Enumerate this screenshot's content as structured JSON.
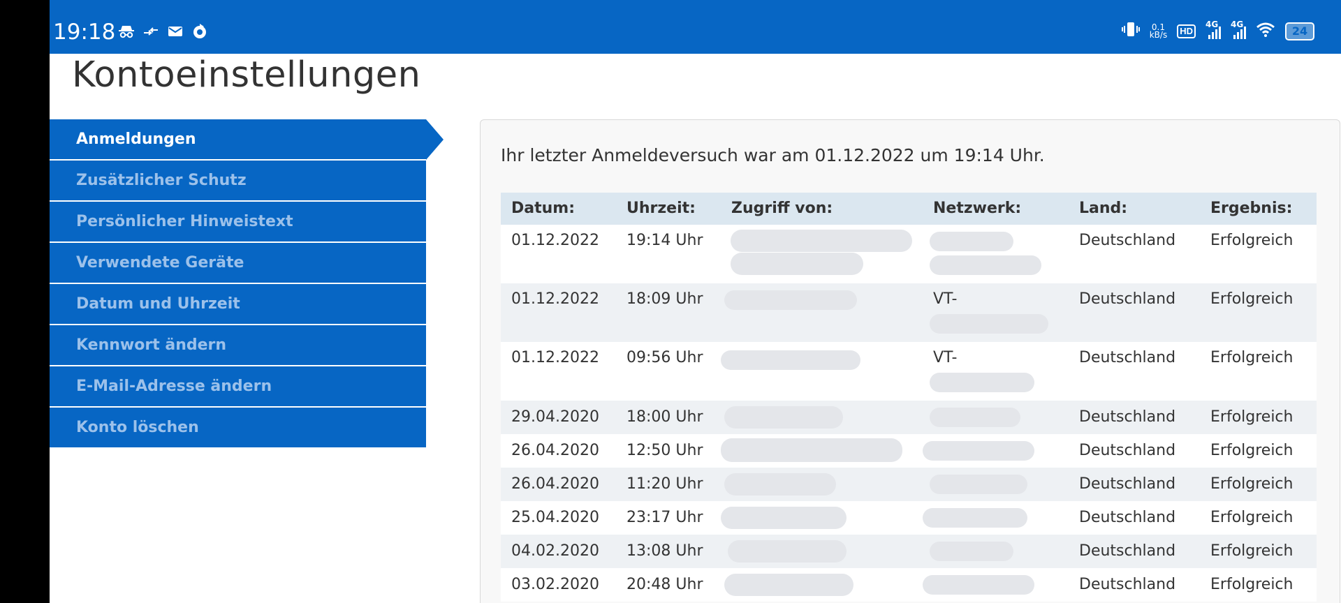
{
  "status_bar": {
    "time": "19:18",
    "left_icons": [
      "incognito-icon",
      "data-transfer-icon",
      "mail-icon",
      "sync-icon"
    ],
    "speed_value": "0.1",
    "speed_unit": "kB/s",
    "hd_label": "HD",
    "signal_label_1": "4G",
    "signal_label_2": "4G",
    "battery": "24"
  },
  "page": {
    "title": "Kontoeinstellungen"
  },
  "sidebar": {
    "items": [
      {
        "label": "Anmeldungen",
        "active": true
      },
      {
        "label": "Zusätzlicher Schutz",
        "active": false
      },
      {
        "label": "Persönlicher Hinweistext",
        "active": false
      },
      {
        "label": "Verwendete Geräte",
        "active": false
      },
      {
        "label": "Datum und Uhrzeit",
        "active": false
      },
      {
        "label": "Kennwort ändern",
        "active": false
      },
      {
        "label": "E-Mail-Adresse ändern",
        "active": false
      },
      {
        "label": "Konto löschen",
        "active": false
      }
    ]
  },
  "main": {
    "last_attempt": "Ihr letzter Anmeldeversuch war am 01.12.2022 um 19:14 Uhr.",
    "table": {
      "headers": [
        "Datum:",
        "Uhrzeit:",
        "Zugriff von:",
        "Netzwerk:",
        "Land:",
        "Ergebnis:"
      ],
      "rows": [
        {
          "date": "01.12.2022",
          "time": "19:14 Uhr",
          "access": "",
          "network": "",
          "country": "Deutschland",
          "result": "Erfolgreich"
        },
        {
          "date": "01.12.2022",
          "time": "18:09 Uhr",
          "access": "",
          "network": "VT-",
          "country": "Deutschland",
          "result": "Erfolgreich"
        },
        {
          "date": "01.12.2022",
          "time": "09:56 Uhr",
          "access": "",
          "network": "VT-",
          "country": "Deutschland",
          "result": "Erfolgreich"
        },
        {
          "date": "29.04.2020",
          "time": "18:00 Uhr",
          "access": "",
          "network": "",
          "country": "Deutschland",
          "result": "Erfolgreich"
        },
        {
          "date": "26.04.2020",
          "time": "12:50 Uhr",
          "access": "",
          "network": "",
          "country": "Deutschland",
          "result": "Erfolgreich"
        },
        {
          "date": "26.04.2020",
          "time": "11:20 Uhr",
          "access": "",
          "network": "",
          "country": "Deutschland",
          "result": "Erfolgreich"
        },
        {
          "date": "25.04.2020",
          "time": "23:17 Uhr",
          "access": "",
          "network": "",
          "country": "Deutschland",
          "result": "Erfolgreich"
        },
        {
          "date": "04.02.2020",
          "time": "13:08 Uhr",
          "access": "",
          "network": "",
          "country": "Deutschland",
          "result": "Erfolgreich"
        },
        {
          "date": "03.02.2020",
          "time": "20:48 Uhr",
          "access": "",
          "network": "",
          "country": "Deutschland",
          "result": "Erfolgreich"
        }
      ]
    }
  },
  "colors": {
    "brand_blue": "#0766c4",
    "inactive_nav_text": "#9cc1ea",
    "table_header_bg": "#dbe7f0"
  }
}
